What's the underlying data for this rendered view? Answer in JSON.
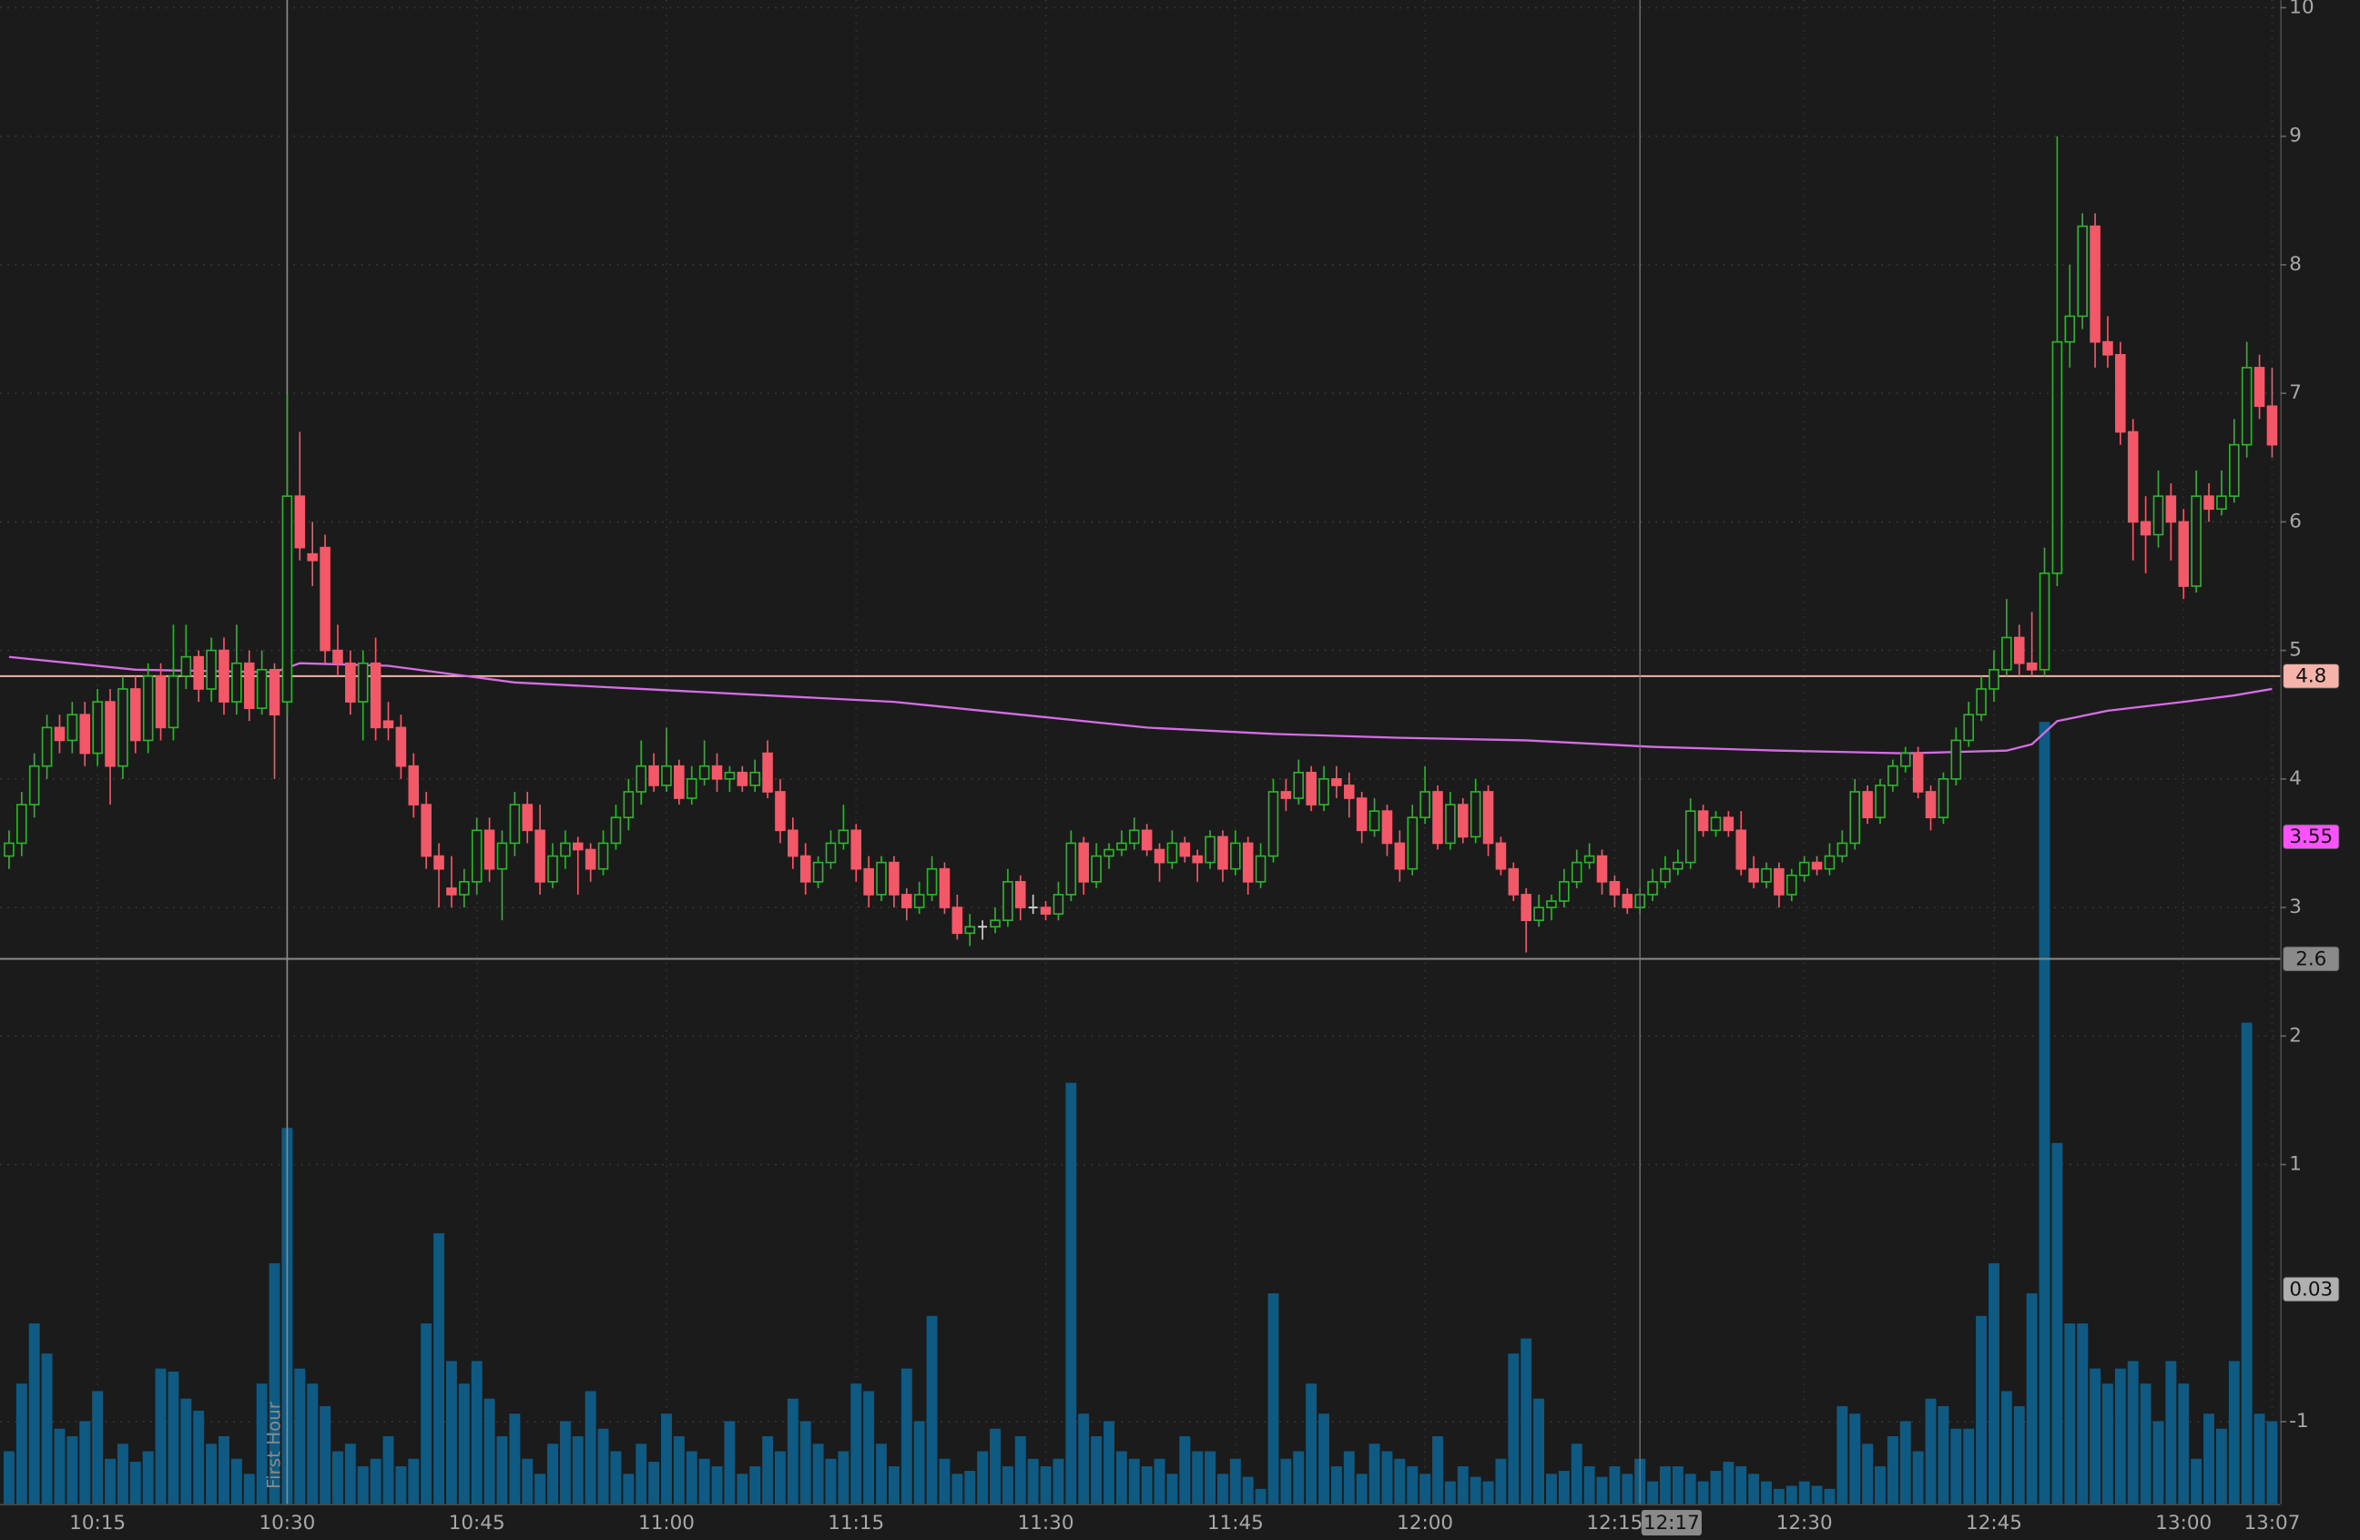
{
  "chart_data": {
    "type": "candlestick",
    "x": [
      "10:08",
      "10:09",
      "10:10",
      "10:11",
      "10:12",
      "10:13",
      "10:14",
      "10:15",
      "10:16",
      "10:17",
      "10:18",
      "10:19",
      "10:20",
      "10:21",
      "10:22",
      "10:23",
      "10:24",
      "10:25",
      "10:26",
      "10:27",
      "10:28",
      "10:29",
      "10:30",
      "10:31",
      "10:32",
      "10:33",
      "10:34",
      "10:35",
      "10:36",
      "10:37",
      "10:38",
      "10:39",
      "10:40",
      "10:41",
      "10:42",
      "10:43",
      "10:44",
      "10:45",
      "10:46",
      "10:47",
      "10:48",
      "10:49",
      "10:50",
      "10:51",
      "10:52",
      "10:53",
      "10:54",
      "10:55",
      "10:56",
      "10:57",
      "10:58",
      "10:59",
      "11:00",
      "11:01",
      "11:02",
      "11:03",
      "11:04",
      "11:05",
      "11:06",
      "11:07",
      "11:08",
      "11:09",
      "11:10",
      "11:11",
      "11:12",
      "11:13",
      "11:14",
      "11:15",
      "11:16",
      "11:17",
      "11:18",
      "11:19",
      "11:20",
      "11:21",
      "11:22",
      "11:23",
      "11:24",
      "11:25",
      "11:26",
      "11:27",
      "11:28",
      "11:29",
      "11:30",
      "11:31",
      "11:32",
      "11:33",
      "11:34",
      "11:35",
      "11:36",
      "11:37",
      "11:38",
      "11:39",
      "11:40",
      "11:41",
      "11:42",
      "11:43",
      "11:44",
      "11:45",
      "11:46",
      "11:47",
      "11:48",
      "11:49",
      "11:50",
      "11:51",
      "11:52",
      "11:53",
      "11:54",
      "11:55",
      "11:56",
      "11:57",
      "11:58",
      "11:59",
      "12:00",
      "12:01",
      "12:02",
      "12:03",
      "12:04",
      "12:05",
      "12:06",
      "12:07",
      "12:08",
      "12:09",
      "12:10",
      "12:11",
      "12:12",
      "12:13",
      "12:14",
      "12:15",
      "12:16",
      "12:17",
      "12:18",
      "12:19",
      "12:20",
      "12:21",
      "12:22",
      "12:23",
      "12:24",
      "12:25",
      "12:26",
      "12:27",
      "12:28",
      "12:29",
      "12:30",
      "12:31",
      "12:32",
      "12:33",
      "12:34",
      "12:35",
      "12:36",
      "12:37",
      "12:38",
      "12:39",
      "12:40",
      "12:41",
      "12:42",
      "12:43",
      "12:44",
      "12:45",
      "12:46",
      "12:47",
      "12:48",
      "12:49",
      "12:50",
      "12:51",
      "12:52",
      "12:53",
      "12:54",
      "12:55",
      "12:56",
      "12:57",
      "12:58",
      "12:59",
      "13:00",
      "13:01",
      "13:02",
      "13:03",
      "13:04",
      "13:05",
      "13:06",
      "13:07"
    ],
    "ohlc": [
      [
        3.4,
        3.6,
        3.3,
        3.5
      ],
      [
        3.5,
        3.9,
        3.4,
        3.8
      ],
      [
        3.8,
        4.2,
        3.7,
        4.1
      ],
      [
        4.1,
        4.5,
        4.0,
        4.4
      ],
      [
        4.4,
        4.5,
        4.2,
        4.3
      ],
      [
        4.3,
        4.6,
        4.2,
        4.5
      ],
      [
        4.5,
        4.6,
        4.1,
        4.2
      ],
      [
        4.2,
        4.7,
        4.1,
        4.6
      ],
      [
        4.6,
        4.7,
        3.8,
        4.1
      ],
      [
        4.1,
        4.8,
        4.0,
        4.7
      ],
      [
        4.7,
        4.8,
        4.2,
        4.3
      ],
      [
        4.3,
        4.9,
        4.2,
        4.8
      ],
      [
        4.8,
        4.9,
        4.3,
        4.4
      ],
      [
        4.4,
        5.2,
        4.3,
        4.8
      ],
      [
        4.8,
        5.2,
        4.7,
        4.95
      ],
      [
        4.95,
        5.0,
        4.6,
        4.7
      ],
      [
        4.7,
        5.1,
        4.6,
        5.0
      ],
      [
        5.0,
        5.1,
        4.5,
        4.6
      ],
      [
        4.6,
        5.2,
        4.5,
        4.9
      ],
      [
        4.9,
        5.0,
        4.45,
        4.55
      ],
      [
        4.55,
        5.0,
        4.5,
        4.85
      ],
      [
        4.85,
        4.9,
        4.0,
        4.5
      ],
      [
        4.6,
        7.0,
        4.5,
        6.2
      ],
      [
        6.2,
        6.7,
        5.7,
        5.8
      ],
      [
        5.75,
        6.0,
        5.5,
        5.7
      ],
      [
        5.8,
        5.9,
        4.9,
        5.0
      ],
      [
        5.0,
        5.2,
        4.8,
        4.9
      ],
      [
        4.9,
        5.0,
        4.5,
        4.6
      ],
      [
        4.6,
        5.0,
        4.3,
        4.9
      ],
      [
        4.9,
        5.1,
        4.3,
        4.4
      ],
      [
        4.45,
        4.6,
        4.3,
        4.4
      ],
      [
        4.4,
        4.5,
        4.0,
        4.1
      ],
      [
        4.1,
        4.2,
        3.7,
        3.8
      ],
      [
        3.8,
        3.9,
        3.3,
        3.4
      ],
      [
        3.4,
        3.5,
        3.0,
        3.3
      ],
      [
        3.15,
        3.4,
        3.0,
        3.1
      ],
      [
        3.1,
        3.3,
        3.0,
        3.2
      ],
      [
        3.2,
        3.7,
        3.1,
        3.6
      ],
      [
        3.6,
        3.7,
        3.2,
        3.3
      ],
      [
        3.3,
        3.6,
        2.9,
        3.5
      ],
      [
        3.5,
        3.9,
        3.4,
        3.8
      ],
      [
        3.8,
        3.9,
        3.5,
        3.6
      ],
      [
        3.6,
        3.8,
        3.1,
        3.2
      ],
      [
        3.2,
        3.5,
        3.15,
        3.4
      ],
      [
        3.4,
        3.6,
        3.3,
        3.5
      ],
      [
        3.5,
        3.55,
        3.1,
        3.45
      ],
      [
        3.45,
        3.5,
        3.2,
        3.3
      ],
      [
        3.3,
        3.6,
        3.25,
        3.5
      ],
      [
        3.5,
        3.8,
        3.45,
        3.7
      ],
      [
        3.7,
        4.0,
        3.6,
        3.9
      ],
      [
        3.9,
        4.3,
        3.8,
        4.1
      ],
      [
        4.1,
        4.2,
        3.9,
        3.95
      ],
      [
        3.95,
        4.4,
        3.9,
        4.1
      ],
      [
        4.1,
        4.15,
        3.8,
        3.85
      ],
      [
        3.85,
        4.1,
        3.8,
        4.0
      ],
      [
        4.0,
        4.3,
        3.95,
        4.1
      ],
      [
        4.1,
        4.2,
        3.9,
        4.0
      ],
      [
        4.0,
        4.1,
        3.9,
        4.05
      ],
      [
        4.05,
        4.1,
        3.9,
        3.95
      ],
      [
        3.95,
        4.15,
        3.9,
        4.05
      ],
      [
        4.2,
        4.3,
        3.85,
        3.9
      ],
      [
        3.9,
        4.0,
        3.5,
        3.6
      ],
      [
        3.6,
        3.7,
        3.3,
        3.4
      ],
      [
        3.4,
        3.5,
        3.1,
        3.2
      ],
      [
        3.2,
        3.4,
        3.15,
        3.35
      ],
      [
        3.35,
        3.6,
        3.3,
        3.5
      ],
      [
        3.5,
        3.8,
        3.45,
        3.6
      ],
      [
        3.6,
        3.65,
        3.2,
        3.3
      ],
      [
        3.3,
        3.4,
        3.0,
        3.1
      ],
      [
        3.1,
        3.4,
        3.05,
        3.35
      ],
      [
        3.35,
        3.4,
        3.0,
        3.1
      ],
      [
        3.1,
        3.15,
        2.9,
        3.0
      ],
      [
        3.0,
        3.2,
        2.95,
        3.1
      ],
      [
        3.1,
        3.4,
        3.05,
        3.3
      ],
      [
        3.3,
        3.35,
        2.95,
        3.0
      ],
      [
        3.0,
        3.1,
        2.75,
        2.8
      ],
      [
        2.8,
        2.95,
        2.7,
        2.85
      ],
      [
        2.85,
        2.9,
        2.75,
        2.85
      ],
      [
        2.85,
        3.0,
        2.8,
        2.9
      ],
      [
        2.9,
        3.3,
        2.85,
        3.2
      ],
      [
        3.2,
        3.25,
        2.9,
        3.0
      ],
      [
        3.0,
        3.1,
        2.95,
        3.0
      ],
      [
        3.0,
        3.05,
        2.9,
        2.95
      ],
      [
        2.95,
        3.2,
        2.9,
        3.1
      ],
      [
        3.1,
        3.6,
        3.05,
        3.5
      ],
      [
        3.5,
        3.55,
        3.1,
        3.2
      ],
      [
        3.2,
        3.5,
        3.15,
        3.4
      ],
      [
        3.4,
        3.5,
        3.3,
        3.45
      ],
      [
        3.45,
        3.6,
        3.4,
        3.5
      ],
      [
        3.5,
        3.7,
        3.45,
        3.6
      ],
      [
        3.6,
        3.65,
        3.4,
        3.45
      ],
      [
        3.45,
        3.5,
        3.2,
        3.35
      ],
      [
        3.35,
        3.6,
        3.3,
        3.5
      ],
      [
        3.5,
        3.55,
        3.35,
        3.4
      ],
      [
        3.4,
        3.45,
        3.2,
        3.35
      ],
      [
        3.35,
        3.6,
        3.3,
        3.55
      ],
      [
        3.55,
        3.6,
        3.2,
        3.3
      ],
      [
        3.3,
        3.6,
        3.25,
        3.5
      ],
      [
        3.5,
        3.55,
        3.1,
        3.2
      ],
      [
        3.2,
        3.5,
        3.15,
        3.4
      ],
      [
        3.4,
        4.0,
        3.35,
        3.9
      ],
      [
        3.9,
        4.0,
        3.75,
        3.85
      ],
      [
        3.85,
        4.15,
        3.8,
        4.05
      ],
      [
        4.05,
        4.1,
        3.75,
        3.8
      ],
      [
        3.8,
        4.1,
        3.75,
        4.0
      ],
      [
        4.0,
        4.1,
        3.85,
        3.95
      ],
      [
        3.95,
        4.05,
        3.7,
        3.85
      ],
      [
        3.85,
        3.9,
        3.5,
        3.6
      ],
      [
        3.6,
        3.85,
        3.55,
        3.75
      ],
      [
        3.75,
        3.8,
        3.4,
        3.5
      ],
      [
        3.5,
        3.6,
        3.2,
        3.3
      ],
      [
        3.3,
        3.8,
        3.25,
        3.7
      ],
      [
        3.7,
        4.1,
        3.65,
        3.9
      ],
      [
        3.9,
        3.95,
        3.45,
        3.5
      ],
      [
        3.5,
        3.9,
        3.45,
        3.8
      ],
      [
        3.8,
        3.85,
        3.5,
        3.55
      ],
      [
        3.55,
        4.0,
        3.5,
        3.9
      ],
      [
        3.9,
        3.95,
        3.4,
        3.5
      ],
      [
        3.5,
        3.55,
        3.25,
        3.3
      ],
      [
        3.3,
        3.35,
        3.05,
        3.1
      ],
      [
        3.1,
        3.15,
        2.65,
        2.9
      ],
      [
        2.9,
        3.1,
        2.85,
        3.0
      ],
      [
        3.0,
        3.1,
        2.9,
        3.05
      ],
      [
        3.05,
        3.3,
        3.0,
        3.2
      ],
      [
        3.2,
        3.45,
        3.15,
        3.35
      ],
      [
        3.35,
        3.5,
        3.3,
        3.4
      ],
      [
        3.4,
        3.45,
        3.1,
        3.2
      ],
      [
        3.2,
        3.25,
        3.0,
        3.1
      ],
      [
        3.1,
        3.15,
        2.95,
        3.0
      ],
      [
        3.0,
        3.15,
        2.95,
        3.1
      ],
      [
        3.1,
        3.3,
        3.05,
        3.2
      ],
      [
        3.2,
        3.4,
        3.15,
        3.3
      ],
      [
        3.3,
        3.45,
        3.25,
        3.35
      ],
      [
        3.35,
        3.85,
        3.3,
        3.75
      ],
      [
        3.75,
        3.8,
        3.55,
        3.6
      ],
      [
        3.6,
        3.75,
        3.55,
        3.7
      ],
      [
        3.7,
        3.75,
        3.55,
        3.6
      ],
      [
        3.6,
        3.75,
        3.25,
        3.3
      ],
      [
        3.3,
        3.4,
        3.15,
        3.2
      ],
      [
        3.2,
        3.35,
        3.15,
        3.3
      ],
      [
        3.3,
        3.35,
        3.0,
        3.1
      ],
      [
        3.1,
        3.3,
        3.05,
        3.25
      ],
      [
        3.25,
        3.4,
        3.2,
        3.35
      ],
      [
        3.35,
        3.4,
        3.25,
        3.3
      ],
      [
        3.3,
        3.5,
        3.25,
        3.4
      ],
      [
        3.4,
        3.6,
        3.35,
        3.5
      ],
      [
        3.5,
        4.0,
        3.45,
        3.9
      ],
      [
        3.9,
        3.95,
        3.65,
        3.7
      ],
      [
        3.7,
        4.0,
        3.65,
        3.95
      ],
      [
        3.95,
        4.15,
        3.9,
        4.1
      ],
      [
        4.1,
        4.25,
        4.05,
        4.2
      ],
      [
        4.2,
        4.25,
        3.85,
        3.9
      ],
      [
        3.9,
        3.95,
        3.6,
        3.7
      ],
      [
        3.7,
        4.05,
        3.65,
        4.0
      ],
      [
        4.0,
        4.4,
        3.95,
        4.3
      ],
      [
        4.3,
        4.6,
        4.25,
        4.5
      ],
      [
        4.5,
        4.8,
        4.45,
        4.7
      ],
      [
        4.7,
        5.0,
        4.6,
        4.85
      ],
      [
        4.85,
        5.4,
        4.8,
        5.1
      ],
      [
        5.1,
        5.2,
        4.8,
        4.9
      ],
      [
        4.9,
        5.3,
        4.8,
        4.85
      ],
      [
        4.85,
        5.8,
        4.8,
        5.6
      ],
      [
        5.6,
        9.0,
        5.5,
        7.4
      ],
      [
        7.4,
        8.0,
        7.2,
        7.6
      ],
      [
        7.6,
        8.4,
        7.5,
        8.3
      ],
      [
        8.3,
        8.4,
        7.2,
        7.4
      ],
      [
        7.4,
        7.6,
        7.2,
        7.3
      ],
      [
        7.3,
        7.4,
        6.6,
        6.7
      ],
      [
        6.7,
        6.8,
        5.7,
        6.0
      ],
      [
        6.0,
        6.2,
        5.6,
        5.9
      ],
      [
        5.9,
        6.4,
        5.8,
        6.2
      ],
      [
        6.2,
        6.3,
        5.7,
        6.0
      ],
      [
        6.0,
        6.1,
        5.4,
        5.5
      ],
      [
        5.5,
        6.4,
        5.45,
        6.2
      ],
      [
        6.2,
        6.3,
        6.0,
        6.1
      ],
      [
        6.1,
        6.4,
        6.05,
        6.2
      ],
      [
        6.2,
        6.8,
        6.15,
        6.6
      ],
      [
        6.6,
        7.4,
        6.5,
        7.2
      ],
      [
        7.2,
        7.3,
        6.8,
        6.9
      ],
      [
        6.9,
        7.2,
        6.5,
        6.6
      ]
    ],
    "volume": [
      35,
      80,
      120,
      100,
      50,
      45,
      55,
      75,
      30,
      40,
      28,
      35,
      90,
      88,
      70,
      62,
      40,
      45,
      30,
      20,
      80,
      160,
      250,
      90,
      80,
      65,
      35,
      40,
      25,
      30,
      45,
      25,
      30,
      120,
      180,
      95,
      80,
      95,
      70,
      45,
      60,
      30,
      20,
      40,
      55,
      45,
      75,
      50,
      35,
      20,
      40,
      28,
      60,
      45,
      35,
      30,
      25,
      55,
      20,
      25,
      45,
      35,
      70,
      55,
      40,
      30,
      35,
      80,
      75,
      40,
      25,
      90,
      55,
      125,
      30,
      20,
      22,
      35,
      50,
      25,
      45,
      30,
      25,
      30,
      280,
      60,
      45,
      55,
      35,
      30,
      25,
      30,
      20,
      45,
      35,
      35,
      20,
      30,
      18,
      10,
      140,
      30,
      35,
      80,
      60,
      25,
      35,
      20,
      40,
      35,
      30,
      25,
      20,
      45,
      15,
      25,
      18,
      15,
      30,
      100,
      110,
      70,
      20,
      22,
      40,
      25,
      18,
      25,
      20,
      30,
      15,
      25,
      25,
      20,
      15,
      22,
      28,
      25,
      20,
      15,
      10,
      12,
      15,
      12,
      10,
      65,
      60,
      40,
      25,
      45,
      55,
      35,
      70,
      65,
      50,
      50,
      125,
      160,
      75,
      65,
      140,
      520,
      240,
      120,
      120,
      90,
      80,
      90,
      95,
      80,
      55,
      95,
      80,
      30,
      60,
      50,
      95,
      320,
      60,
      55
    ],
    "vlim": [
      0,
      1000
    ],
    "up_color": "#2db32d",
    "down_color": "#f25867",
    "volume_color": "#0e5a82",
    "vwap": {
      "color": "#d66de6",
      "x": [
        "10:08",
        "10:18",
        "10:29",
        "10:31",
        "10:38",
        "10:48",
        "10:58",
        "11:08",
        "11:18",
        "11:28",
        "11:38",
        "11:48",
        "11:58",
        "12:08",
        "12:18",
        "12:28",
        "12:38",
        "12:46",
        "12:48",
        "12:50",
        "12:54",
        "13:00",
        "13:04",
        "13:07"
      ],
      "values": [
        4.95,
        4.85,
        4.83,
        4.9,
        4.88,
        4.75,
        4.7,
        4.65,
        4.6,
        4.5,
        4.4,
        4.35,
        4.32,
        4.3,
        4.25,
        4.22,
        4.2,
        4.22,
        4.27,
        4.45,
        4.53,
        4.6,
        4.65,
        4.7
      ]
    },
    "ylim": [
      -1.64,
      10.06
    ],
    "yticks": [
      10,
      9,
      8,
      7,
      6,
      5,
      4,
      3,
      2,
      1,
      -1
    ],
    "xticks": [
      "10:15",
      "10:30",
      "10:45",
      "11:00",
      "11:15",
      "11:30",
      "11:45",
      "12:00",
      "12:15",
      "12:30",
      "12:45",
      "13:00",
      "13:07"
    ],
    "grid": true,
    "price_labels": [
      {
        "value": 4.8,
        "color": "#f5b3aa",
        "line": true
      },
      {
        "value": 3.55,
        "color": "#ff52ff",
        "line": false
      },
      {
        "value": 2.6,
        "color": "#8a8a8a",
        "line": true
      },
      {
        "value": 0.03,
        "color": "#b0b0b0",
        "line": false
      }
    ],
    "markers": [
      {
        "x": "10:30",
        "label": "First Hour"
      }
    ],
    "crosshair": {
      "x": "12:17"
    }
  }
}
